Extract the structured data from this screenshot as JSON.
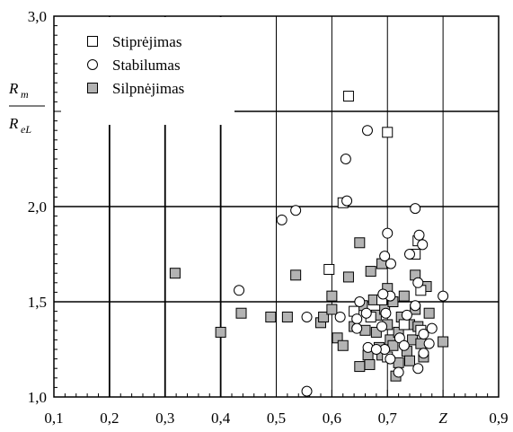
{
  "chart_data": {
    "type": "scatter",
    "xlim": [
      0.1,
      0.9
    ],
    "ylim": [
      1.0,
      3.0
    ],
    "x_ticks": [
      "0,1",
      "0,2",
      "0,3",
      "0,4",
      "0,5",
      "0,6",
      "0,7",
      "Z",
      "0,9"
    ],
    "x_tick_values": [
      0.1,
      0.2,
      0.3,
      0.4,
      0.5,
      0.6,
      0.7,
      0.8,
      0.9
    ],
    "y_ticks": [
      "1,0",
      "1,5",
      "2,0",
      "3,0"
    ],
    "y_tick_values": [
      1.0,
      1.5,
      2.0,
      3.0
    ],
    "xlabel": "Z",
    "ylabel": {
      "numerator_base": "R",
      "numerator_sub": "m",
      "denominator_base": "R",
      "denominator_sub": "eL"
    },
    "grid": true,
    "legend_position": "top-left",
    "series": [
      {
        "name": "Stiprėjimas",
        "marker": "square-open",
        "points": [
          [
            0.63,
            2.58
          ],
          [
            0.7,
            2.39
          ],
          [
            0.62,
            2.02
          ],
          [
            0.595,
            1.67
          ],
          [
            0.755,
            1.82
          ],
          [
            0.75,
            1.75
          ],
          [
            0.76,
            1.56
          ],
          [
            0.69,
            1.51
          ],
          [
            0.67,
            1.42
          ],
          [
            0.64,
            1.45
          ],
          [
            0.73,
            1.38
          ],
          [
            0.76,
            1.35
          ],
          [
            0.7,
            1.21
          ]
        ]
      },
      {
        "name": "Stabilumas",
        "marker": "circle-open",
        "points": [
          [
            0.664,
            2.4
          ],
          [
            0.625,
            2.25
          ],
          [
            0.627,
            2.03
          ],
          [
            0.535,
            1.98
          ],
          [
            0.51,
            1.93
          ],
          [
            0.75,
            1.99
          ],
          [
            0.7,
            1.86
          ],
          [
            0.757,
            1.85
          ],
          [
            0.763,
            1.8
          ],
          [
            0.695,
            1.74
          ],
          [
            0.74,
            1.75
          ],
          [
            0.706,
            1.7
          ],
          [
            0.755,
            1.6
          ],
          [
            0.705,
            1.53
          ],
          [
            0.692,
            1.54
          ],
          [
            0.8,
            1.53
          ],
          [
            0.65,
            1.5
          ],
          [
            0.433,
            1.56
          ],
          [
            0.615,
            1.42
          ],
          [
            0.555,
            1.42
          ],
          [
            0.662,
            1.44
          ],
          [
            0.645,
            1.41
          ],
          [
            0.697,
            1.44
          ],
          [
            0.735,
            1.43
          ],
          [
            0.645,
            1.36
          ],
          [
            0.69,
            1.37
          ],
          [
            0.75,
            1.48
          ],
          [
            0.78,
            1.36
          ],
          [
            0.765,
            1.33
          ],
          [
            0.722,
            1.31
          ],
          [
            0.775,
            1.28
          ],
          [
            0.73,
            1.27
          ],
          [
            0.695,
            1.25
          ],
          [
            0.665,
            1.26
          ],
          [
            0.68,
            1.25
          ],
          [
            0.705,
            1.2
          ],
          [
            0.765,
            1.23
          ],
          [
            0.72,
            1.13
          ],
          [
            0.755,
            1.15
          ],
          [
            0.555,
            1.03
          ]
        ]
      },
      {
        "name": "Silpnėjimas",
        "marker": "square-filled",
        "points": [
          [
            0.318,
            1.65
          ],
          [
            0.4,
            1.34
          ],
          [
            0.437,
            1.44
          ],
          [
            0.49,
            1.42
          ],
          [
            0.52,
            1.42
          ],
          [
            0.535,
            1.64
          ],
          [
            0.58,
            1.39
          ],
          [
            0.585,
            1.42
          ],
          [
            0.6,
            1.53
          ],
          [
            0.61,
            1.31
          ],
          [
            0.62,
            1.27
          ],
          [
            0.63,
            1.63
          ],
          [
            0.64,
            1.37
          ],
          [
            0.65,
            1.81
          ],
          [
            0.655,
            1.48
          ],
          [
            0.66,
            1.35
          ],
          [
            0.665,
            1.22
          ],
          [
            0.668,
            1.17
          ],
          [
            0.67,
            1.66
          ],
          [
            0.675,
            1.51
          ],
          [
            0.68,
            1.43
          ],
          [
            0.68,
            1.34
          ],
          [
            0.685,
            1.26
          ],
          [
            0.69,
            1.7
          ],
          [
            0.69,
            1.22
          ],
          [
            0.695,
            1.46
          ],
          [
            0.7,
            1.57
          ],
          [
            0.7,
            1.38
          ],
          [
            0.705,
            1.3
          ],
          [
            0.71,
            1.5
          ],
          [
            0.71,
            1.27
          ],
          [
            0.715,
            1.11
          ],
          [
            0.72,
            1.18
          ],
          [
            0.72,
            1.34
          ],
          [
            0.725,
            1.42
          ],
          [
            0.73,
            1.53
          ],
          [
            0.735,
            1.24
          ],
          [
            0.74,
            1.38
          ],
          [
            0.745,
            1.3
          ],
          [
            0.75,
            1.64
          ],
          [
            0.75,
            1.46
          ],
          [
            0.755,
            1.37
          ],
          [
            0.76,
            1.28
          ],
          [
            0.765,
            1.21
          ],
          [
            0.77,
            1.58
          ],
          [
            0.775,
            1.44
          ],
          [
            0.8,
            1.29
          ],
          [
            0.65,
            1.16
          ],
          [
            0.74,
            1.19
          ],
          [
            0.6,
            1.46
          ]
        ]
      }
    ]
  }
}
